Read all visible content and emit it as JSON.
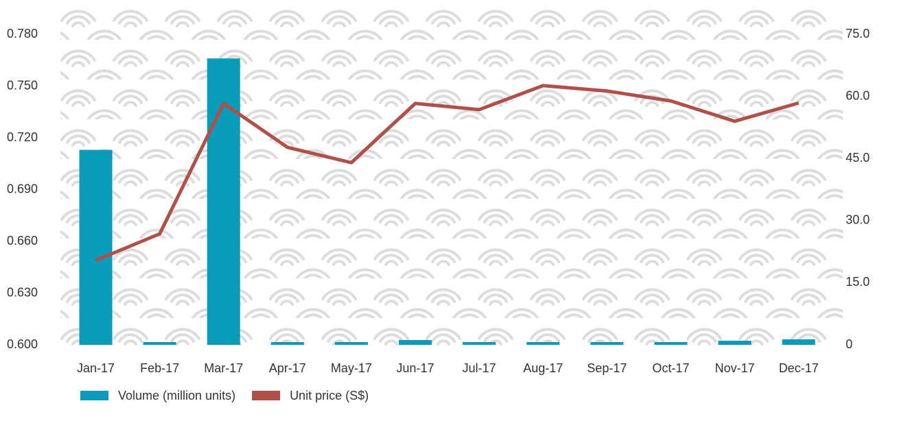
{
  "chart_data": {
    "type": "bar-line",
    "categories": [
      "Jan-17",
      "Feb-17",
      "Mar-17",
      "Apr-17",
      "May-17",
      "Jun-17",
      "Jul-17",
      "Aug-17",
      "Sep-17",
      "Oct-17",
      "Nov-17",
      "Dec-17"
    ],
    "series": [
      {
        "name": "Volume (million units)",
        "type": "bar",
        "color": "#0a9bb8",
        "axis": "y",
        "values": [
          0.713,
          0.6016,
          0.766,
          0.6016,
          0.6016,
          0.6028,
          0.6016,
          0.6016,
          0.6016,
          0.6016,
          0.6024,
          0.6032
        ]
      },
      {
        "name": "Unit price (S$)",
        "type": "line",
        "color": "#b0504a",
        "axis": "y2",
        "values": [
          20.4,
          26.8,
          58.3,
          47.7,
          44.0,
          58.3,
          56.8,
          62.6,
          61.3,
          58.9,
          54.0,
          58.4
        ]
      }
    ],
    "ylim": [
      0.6,
      0.78
    ],
    "yticks": [
      {
        "value": 0.6,
        "label": "0.600"
      },
      {
        "value": 0.63,
        "label": "0.630"
      },
      {
        "value": 0.66,
        "label": "0.660"
      },
      {
        "value": 0.69,
        "label": "0.690"
      },
      {
        "value": 0.72,
        "label": "0.720"
      },
      {
        "value": 0.75,
        "label": "0.750"
      },
      {
        "value": 0.78,
        "label": "0.780"
      }
    ],
    "y2lim": [
      0,
      75
    ],
    "y2ticks": [
      0,
      {
        "value": 15,
        "label": "15.0"
      },
      {
        "value": 30,
        "label": "30.0"
      },
      {
        "value": 45,
        "label": "45.0"
      },
      {
        "value": 60,
        "label": "60.0"
      },
      {
        "value": 75,
        "label": "75.0"
      }
    ],
    "legend": "bottom-left"
  }
}
